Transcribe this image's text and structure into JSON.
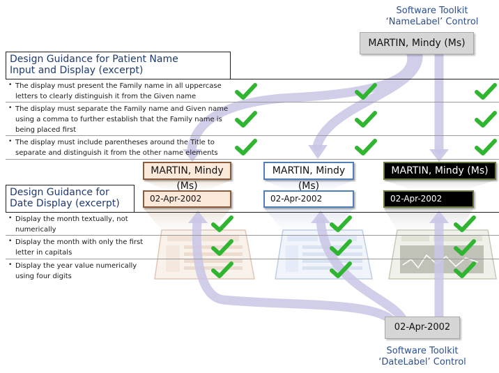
{
  "name_toolkit": {
    "title_line1": "Software Toolkit",
    "title_line2": "‘NameLabel’ Control",
    "sample": "MARTIN, Mindy (Ms)"
  },
  "date_toolkit": {
    "title_line1": "Software Toolkit",
    "title_line2": "‘DateLabel’ Control",
    "sample": "02-Apr-2002"
  },
  "name_panel": {
    "title_line1": "Design Guidance for Patient Name",
    "title_line2": "Input and Display (excerpt)",
    "items": [
      "The display must present the Family name in all uppercase letters to clearly distinguish it from the Given name",
      "The display must separate the Family name and Given name using a comma to further establish that the Family name is being placed first",
      "The display must include parentheses around the Title to separate and distinguish it from the other name elements"
    ]
  },
  "date_panel": {
    "title_line1": "Design Guidance for",
    "title_line2": "Date Display (excerpt)",
    "items": [
      "Display the month textually, not numerically",
      "Display the month with only the first letter in capitals",
      "Display the year value numerically using four digits"
    ]
  },
  "names": [
    "MARTIN, Mindy (Ms)",
    "MARTIN, Mindy (Ms)",
    "MARTIN, Mindy (Ms)"
  ],
  "dates": [
    "02-Apr-2002",
    "02-Apr-2002",
    "02-Apr-2002"
  ],
  "colors": {
    "check": "#2fb52f",
    "arrow": "#c9c6e6",
    "style_a_bg": "#fde9d9",
    "style_b_border": "#4f7fb8",
    "style_c_bg": "#000000"
  }
}
